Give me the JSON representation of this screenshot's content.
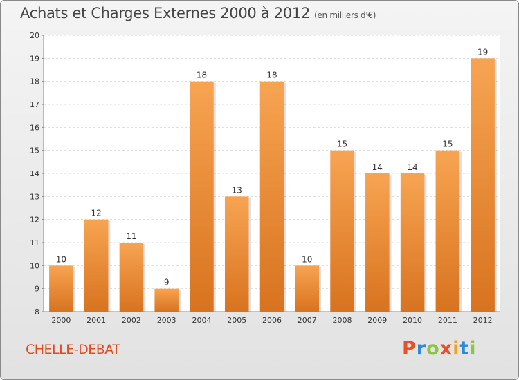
{
  "header": {
    "title": "Achats et Charges Externes 2000 à 2012",
    "unit": "(en milliers d'€)"
  },
  "footer": {
    "commune": "CHELLE-DEBAT",
    "logo_letters": [
      "P",
      "r",
      "o",
      "x",
      "i",
      "t",
      "i"
    ],
    "logo_colors": [
      "#e8502a",
      "#2e8ad8",
      "#8cc63f",
      "#e8502a",
      "#f3a21c",
      "#2e8ad8",
      "#8cc63f"
    ]
  },
  "chart_data": {
    "type": "bar",
    "title": "Achats et Charges Externes 2000 à 2012",
    "subtitle": "(en milliers d'€)",
    "categories": [
      "2000",
      "2001",
      "2002",
      "2003",
      "2004",
      "2005",
      "2006",
      "2007",
      "2008",
      "2009",
      "2010",
      "2011",
      "2012"
    ],
    "values": [
      10,
      12,
      11,
      9,
      18,
      13,
      18,
      10,
      15,
      14,
      14,
      15,
      19
    ],
    "ylim": [
      8,
      20
    ],
    "yticks": [
      8,
      9,
      10,
      11,
      12,
      13,
      14,
      15,
      16,
      17,
      18,
      19,
      20
    ],
    "grid": true,
    "bar_color_light": "#f7a452",
    "bar_color_dark": "#d8731f"
  }
}
